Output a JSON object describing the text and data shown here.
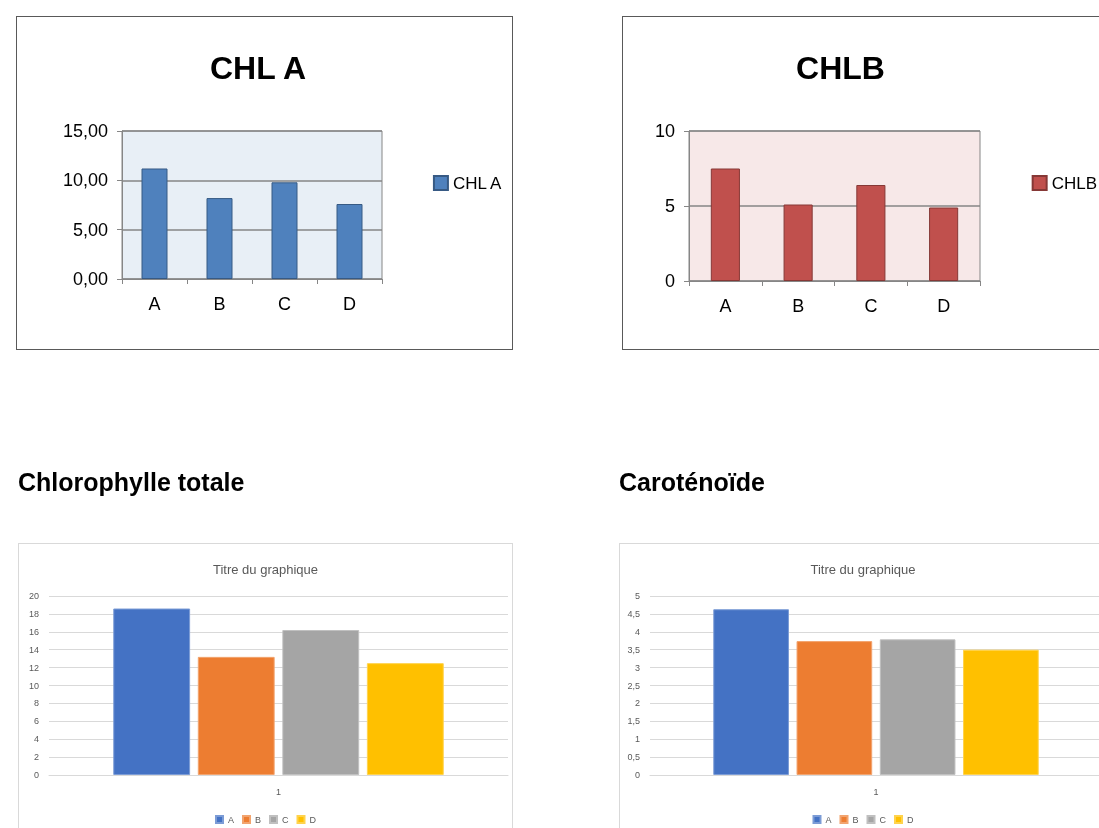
{
  "chart_data": [
    {
      "type": "bar",
      "title": "CHL A",
      "categories": [
        "A",
        "B",
        "C",
        "D"
      ],
      "series": [
        {
          "name": "CHL A",
          "color": "#4f81bd",
          "values": [
            11.2,
            8.2,
            9.8,
            7.6
          ]
        }
      ],
      "ylim": [
        0,
        15
      ],
      "yticks": [
        {
          "value": 0,
          "label": "0,00"
        },
        {
          "value": 5,
          "label": "5,00"
        },
        {
          "value": 10,
          "label": "10,00"
        },
        {
          "value": 15,
          "label": "15,00"
        }
      ],
      "grid": "y",
      "legend": "right"
    },
    {
      "type": "bar",
      "title": "CHLB",
      "categories": [
        "A",
        "B",
        "C",
        "D"
      ],
      "series": [
        {
          "name": "CHLB",
          "color": "#c0504d",
          "values": [
            7.5,
            5.1,
            6.4,
            4.9
          ]
        }
      ],
      "ylim": [
        0,
        10
      ],
      "yticks": [
        0,
        5,
        10
      ],
      "grid": "y",
      "legend": "right"
    },
    {
      "type": "bar",
      "title": "Chlorophylle totale",
      "subtitle": "Titre du graphique",
      "categories": [
        "1"
      ],
      "series": [
        {
          "name": "A",
          "color": "#4472c4",
          "values": [
            18.6
          ]
        },
        {
          "name": "B",
          "color": "#ed7d31",
          "values": [
            13.2
          ]
        },
        {
          "name": "C",
          "color": "#a5a5a5",
          "values": [
            16.2
          ]
        },
        {
          "name": "D",
          "color": "#ffc000",
          "values": [
            12.5
          ]
        }
      ],
      "ylim": [
        0,
        20
      ],
      "yticks": [
        0,
        2,
        4,
        6,
        8,
        10,
        12,
        14,
        16,
        18,
        20
      ],
      "grid": "y",
      "legend": "bottom"
    },
    {
      "type": "bar",
      "title": "Caroténoïde",
      "subtitle": "Titre du graphique",
      "categories": [
        "1"
      ],
      "series": [
        {
          "name": "A",
          "color": "#4472c4",
          "values": [
            4.63
          ]
        },
        {
          "name": "B",
          "color": "#ed7d31",
          "values": [
            3.74
          ]
        },
        {
          "name": "C",
          "color": "#a5a5a5",
          "values": [
            3.79
          ]
        },
        {
          "name": "D",
          "color": "#ffc000",
          "values": [
            3.5
          ]
        }
      ],
      "ylim": [
        0,
        5
      ],
      "yticks": [
        0,
        {
          "value": 0.5,
          "label": "0,5"
        },
        1,
        {
          "value": 1.5,
          "label": "1,5"
        },
        2,
        {
          "value": 2.5,
          "label": "2,5"
        },
        3,
        {
          "value": 3.5,
          "label": "3,5"
        },
        4,
        {
          "value": 4.5,
          "label": "4,5"
        },
        5
      ],
      "grid": "y",
      "legend": "bottom"
    }
  ]
}
